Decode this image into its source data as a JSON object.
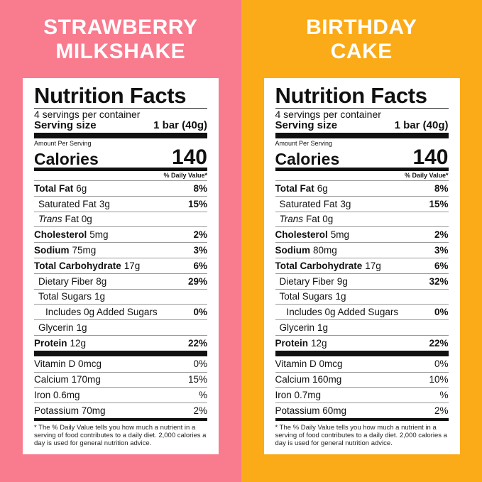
{
  "panels": [
    {
      "title": [
        "STRAWBERRY",
        "MILKSHAKE"
      ],
      "label": {
        "heading": "Nutrition Facts",
        "servings": "4 servings per container",
        "serving_size": "Serving size",
        "serving_amount": "1 bar (40g)",
        "amount_per": "Amount Per Serving",
        "calories_label": "Calories",
        "calories": "140",
        "dv_header": "% Daily Value*",
        "rows": [
          {
            "name": "Total Fat",
            "amount": "6g",
            "dv": "8%",
            "bold": true,
            "level": 0
          },
          {
            "name": "Saturated Fat",
            "amount": "3g",
            "dv": "15%",
            "level": 1
          },
          {
            "italic": "Trans",
            "name": "Fat 0g",
            "level": 1
          },
          {
            "name": "Cholesterol",
            "amount": "5mg",
            "dv": "2%",
            "bold": true,
            "level": 0
          },
          {
            "name": "Sodium",
            "amount": "75mg",
            "dv": "3%",
            "bold": true,
            "level": 0
          },
          {
            "name": "Total Carbohydrate",
            "amount": "17g",
            "dv": "6%",
            "bold": true,
            "level": 0
          },
          {
            "name": "Dietary Fiber",
            "amount": "8g",
            "dv": "29%",
            "level": 1
          },
          {
            "name": "Total Sugars",
            "amount": "1g",
            "level": 1
          },
          {
            "name": "Includes 0g Added Sugars",
            "dv": "0%",
            "level": 2
          },
          {
            "name": "Glycerin",
            "amount": "1g",
            "level": 1
          },
          {
            "name": "Protein",
            "amount": "12g",
            "dv": "22%",
            "bold": true,
            "level": 0
          }
        ],
        "vitamins": [
          {
            "name": "Vitamin D 0mcg",
            "dv": "0%"
          },
          {
            "name": "Calcium 170mg",
            "dv": "15%"
          },
          {
            "name": "Iron 0.6mg",
            "dv": "%"
          },
          {
            "name": "Potassium 70mg",
            "dv": "2%"
          }
        ],
        "footnote": "* The % Daily Value tells you how much a nutrient in a serving of food contributes to a daily diet. 2,000 calories a day is used for general nutrition advice."
      }
    },
    {
      "title": [
        "BIRTHDAY",
        "CAKE"
      ],
      "label": {
        "heading": "Nutrition Facts",
        "servings": "4 servings per container",
        "serving_size": "Serving size",
        "serving_amount": "1 bar (40g)",
        "amount_per": "Amount Per Serving",
        "calories_label": "Calories",
        "calories": "140",
        "dv_header": "% Daily Value*",
        "rows": [
          {
            "name": "Total Fat",
            "amount": "6g",
            "dv": "8%",
            "bold": true,
            "level": 0
          },
          {
            "name": "Saturated Fat",
            "amount": "3g",
            "dv": "15%",
            "level": 1
          },
          {
            "italic": "Trans",
            "name": "Fat 0g",
            "level": 1
          },
          {
            "name": "Cholesterol",
            "amount": "5mg",
            "dv": "2%",
            "bold": true,
            "level": 0
          },
          {
            "name": "Sodium",
            "amount": "80mg",
            "dv": "3%",
            "bold": true,
            "level": 0
          },
          {
            "name": "Total Carbohydrate",
            "amount": "17g",
            "dv": "6%",
            "bold": true,
            "level": 0
          },
          {
            "name": "Dietary Fiber",
            "amount": "9g",
            "dv": "32%",
            "level": 1
          },
          {
            "name": "Total Sugars",
            "amount": "1g",
            "level": 1
          },
          {
            "name": "Includes 0g Added Sugars",
            "dv": "0%",
            "level": 2
          },
          {
            "name": "Glycerin",
            "amount": "1g",
            "level": 1
          },
          {
            "name": "Protein",
            "amount": "12g",
            "dv": "22%",
            "bold": true,
            "level": 0
          }
        ],
        "vitamins": [
          {
            "name": "Vitamin D 0mcg",
            "dv": "0%"
          },
          {
            "name": "Calcium 160mg",
            "dv": "10%"
          },
          {
            "name": "Iron 0.7mg",
            "dv": "%"
          },
          {
            "name": "Potassium 60mg",
            "dv": "2%"
          }
        ],
        "footnote": "* The % Daily Value tells you how much a nutrient in a serving of food contributes to a daily diet. 2,000 calories a day is used for general nutrition advice."
      }
    }
  ]
}
